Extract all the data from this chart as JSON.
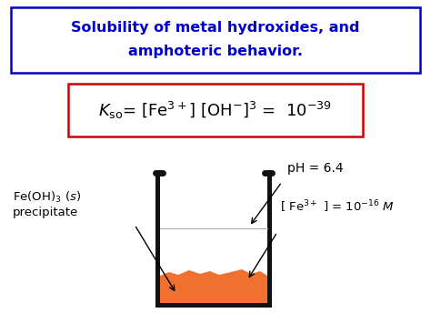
{
  "bg_color": "#ffffff",
  "title_color": "#0000cc",
  "title_box_color": "#0000cc",
  "formula_box_color": "#cc0000",
  "beaker_fill_color": "#f07030",
  "beaker_line_color": "#111111",
  "text_color": "#000000",
  "title_line1": "Solubility of metal hydroxides, and",
  "title_line2": "amphoteric behavior.",
  "formula_text": "$\\mathit{K}_{\\mathrm{so}}$= [Fe$^{\\mathrm{3+}}$] [OH$^{\\mathrm{-}}$]$^{\\mathrm{3}}$ =  10$^{\\mathrm{-39}}$",
  "ph_text": "pH = 6.4",
  "fe_text": "[ Fe$^{\\mathrm{3+}}$ ] = 10$^{\\mathrm{-16}}$ $\\mathit{M}$",
  "precip_line1": "Fe(OH)$_{\\mathrm{3}}$ ($\\mathit{s}$)",
  "precip_line2": "precipitate"
}
